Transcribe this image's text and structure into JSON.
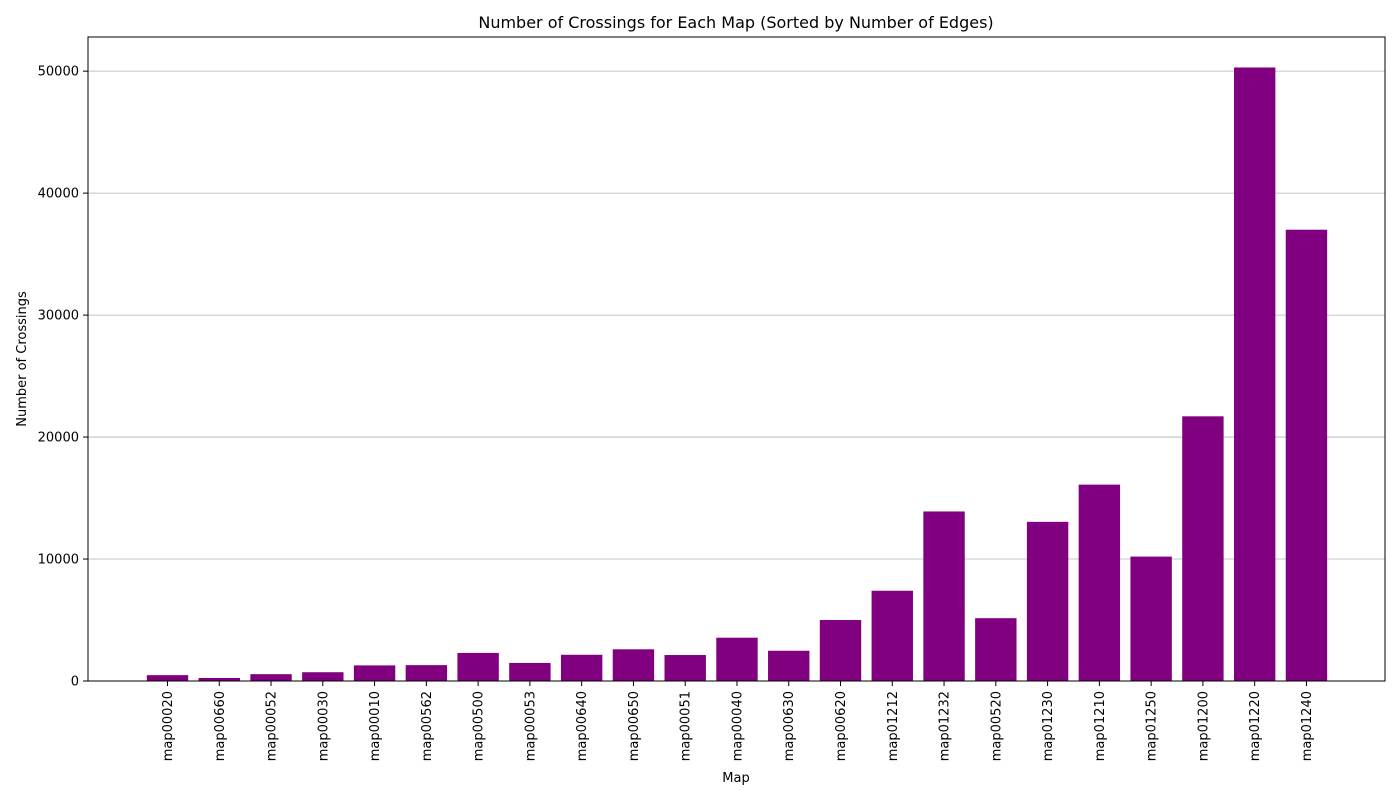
{
  "chart_data": {
    "type": "bar",
    "title": "Number of Crossings for Each Map (Sorted by Number of Edges)",
    "xlabel": "Map",
    "ylabel": "Number of Crossings",
    "categories": [
      "map00020",
      "map00660",
      "map00052",
      "map00030",
      "map00010",
      "map00562",
      "map00500",
      "map00053",
      "map00640",
      "map00650",
      "map00051",
      "map00040",
      "map00630",
      "map00620",
      "map01212",
      "map01232",
      "map00520",
      "map01230",
      "map01210",
      "map01250",
      "map01200",
      "map01220",
      "map01240"
    ],
    "values": [
      480,
      250,
      560,
      720,
      1280,
      1300,
      2300,
      1480,
      2150,
      2600,
      2130,
      3550,
      2480,
      5000,
      7400,
      13900,
      5150,
      13050,
      16100,
      10200,
      21700,
      50300,
      37000
    ],
    "ylim": [
      0,
      52800
    ],
    "yticks": [
      0,
      10000,
      20000,
      30000,
      40000,
      50000
    ],
    "grid": "y",
    "bar_color": "#800080",
    "legend": "none"
  }
}
